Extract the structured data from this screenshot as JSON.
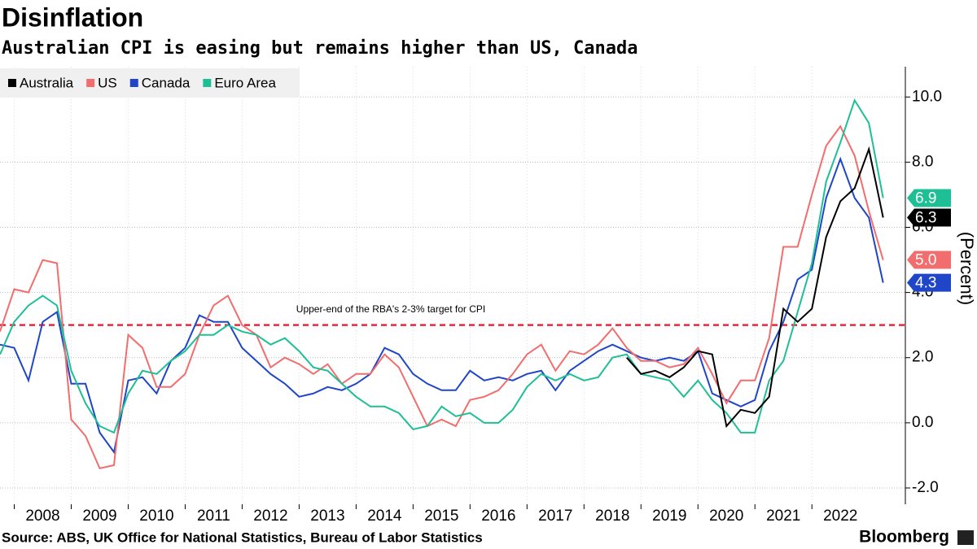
{
  "chart_data": {
    "type": "line",
    "title": "Disinflation",
    "subtitle": "Australian CPI is easing but remains higher than US, Canada",
    "y_label": "(Percent)",
    "source": "Source: ABS, UK Office for National Statistics, Bureau of Labor Statistics",
    "brand": "Bloomberg",
    "annotation": {
      "text": "Upper-end of the RBA's 2-3% target for CPI",
      "value": 3,
      "color": "#e8283c"
    },
    "legend": "top-left",
    "grid": true,
    "x": [
      2007.75,
      2008,
      2008.25,
      2008.5,
      2008.75,
      2009,
      2009.25,
      2009.5,
      2009.75,
      2010,
      2010.25,
      2010.5,
      2010.75,
      2011,
      2011.25,
      2011.5,
      2011.75,
      2012,
      2012.25,
      2012.5,
      2012.75,
      2013,
      2013.25,
      2013.5,
      2013.75,
      2014,
      2014.25,
      2014.5,
      2014.75,
      2015,
      2015.25,
      2015.5,
      2015.75,
      2016,
      2016.25,
      2016.5,
      2016.75,
      2017,
      2017.25,
      2017.5,
      2017.75,
      2018,
      2018.25,
      2018.5,
      2018.75,
      2019,
      2019.25,
      2019.5,
      2019.75,
      2020,
      2020.25,
      2020.5,
      2020.75,
      2021,
      2021.25,
      2021.5,
      2021.75,
      2022,
      2022.25,
      2022.5,
      2022.75,
      2023,
      2023.25
    ],
    "xlim": [
      2007.75,
      2023.64
    ],
    "xticks": [
      2008,
      2009,
      2010,
      2011,
      2012,
      2013,
      2014,
      2015,
      2016,
      2017,
      2018,
      2019,
      2020,
      2021,
      2022
    ],
    "ylim": [
      -2.5,
      10.93
    ],
    "yticks": [
      {
        "value": -2,
        "label": "-2.0"
      },
      {
        "value": 0,
        "label": "0.0"
      },
      {
        "value": 2,
        "label": "2.0"
      },
      {
        "value": 4,
        "label": "4.0"
      },
      {
        "value": 6,
        "label": "6.0"
      },
      {
        "value": 8,
        "label": "8.0"
      },
      {
        "value": 10,
        "label": "10.0"
      }
    ],
    "series": [
      {
        "name": "Australia",
        "color": "#000000",
        "end_label": "6.3",
        "values": [
          null,
          null,
          null,
          null,
          null,
          null,
          null,
          null,
          null,
          null,
          null,
          null,
          null,
          null,
          null,
          null,
          null,
          null,
          null,
          null,
          null,
          null,
          null,
          null,
          null,
          null,
          null,
          null,
          null,
          null,
          null,
          null,
          null,
          null,
          null,
          null,
          null,
          null,
          null,
          null,
          null,
          null,
          null,
          null,
          2.0,
          1.5,
          1.6,
          1.4,
          1.7,
          2.2,
          2.1,
          -0.1,
          0.4,
          0.3,
          0.8,
          3.5,
          3.1,
          3.5,
          5.7,
          6.8,
          7.2,
          8.4,
          6.3
        ]
      },
      {
        "name": "US",
        "color": "#f26d6d",
        "end_label": "5.0",
        "values": [
          2.8,
          4.1,
          4.0,
          5.0,
          4.9,
          0.1,
          -0.4,
          -1.4,
          -1.3,
          2.7,
          2.3,
          1.1,
          1.1,
          1.5,
          2.7,
          3.6,
          3.9,
          3.0,
          2.7,
          1.7,
          2.0,
          1.8,
          1.5,
          1.8,
          1.2,
          1.5,
          1.5,
          2.1,
          1.7,
          0.8,
          -0.1,
          0.1,
          -0.1,
          0.7,
          0.8,
          1.0,
          1.5,
          2.1,
          2.4,
          1.6,
          2.2,
          2.1,
          2.4,
          2.9,
          2.3,
          1.9,
          1.9,
          1.7,
          1.8,
          2.3,
          1.5,
          0.6,
          1.3,
          1.3,
          2.6,
          5.4,
          5.4,
          7.0,
          8.5,
          9.1,
          8.2,
          6.5,
          5.0
        ]
      },
      {
        "name": "Canada",
        "color": "#1f45c8",
        "end_label": "4.3",
        "values": [
          2.4,
          2.3,
          1.3,
          3.1,
          3.4,
          1.2,
          1.2,
          -0.3,
          -0.9,
          1.3,
          1.4,
          0.9,
          1.9,
          2.3,
          3.3,
          3.1,
          3.1,
          2.3,
          1.9,
          1.5,
          1.2,
          0.8,
          0.9,
          1.1,
          1.0,
          1.2,
          1.5,
          2.3,
          2.1,
          1.5,
          1.2,
          1.0,
          1.0,
          1.6,
          1.3,
          1.4,
          1.3,
          1.5,
          1.6,
          1.0,
          1.6,
          1.9,
          2.2,
          2.4,
          2.2,
          2.0,
          1.9,
          2.0,
          1.9,
          2.2,
          0.9,
          0.7,
          0.5,
          0.7,
          2.2,
          3.1,
          4.4,
          4.7,
          6.9,
          8.1,
          6.9,
          6.3,
          4.3
        ]
      },
      {
        "name": "Euro Area",
        "color": "#1fbf96",
        "end_label": "6.9",
        "values": [
          2.1,
          3.1,
          3.6,
          3.9,
          3.6,
          1.6,
          0.6,
          -0.1,
          -0.3,
          0.9,
          1.6,
          1.5,
          1.9,
          2.2,
          2.7,
          2.7,
          3.0,
          2.8,
          2.7,
          2.4,
          2.6,
          2.2,
          1.7,
          1.6,
          1.2,
          0.8,
          0.5,
          0.5,
          0.3,
          -0.2,
          -0.1,
          0.5,
          0.2,
          0.3,
          0.0,
          0.0,
          0.4,
          1.1,
          1.5,
          1.3,
          1.5,
          1.3,
          1.4,
          2.0,
          2.1,
          1.5,
          1.4,
          1.3,
          0.8,
          1.3,
          0.7,
          0.3,
          -0.3,
          -0.3,
          1.3,
          1.9,
          3.4,
          4.9,
          7.4,
          8.6,
          9.9,
          9.2,
          6.9
        ]
      }
    ]
  }
}
